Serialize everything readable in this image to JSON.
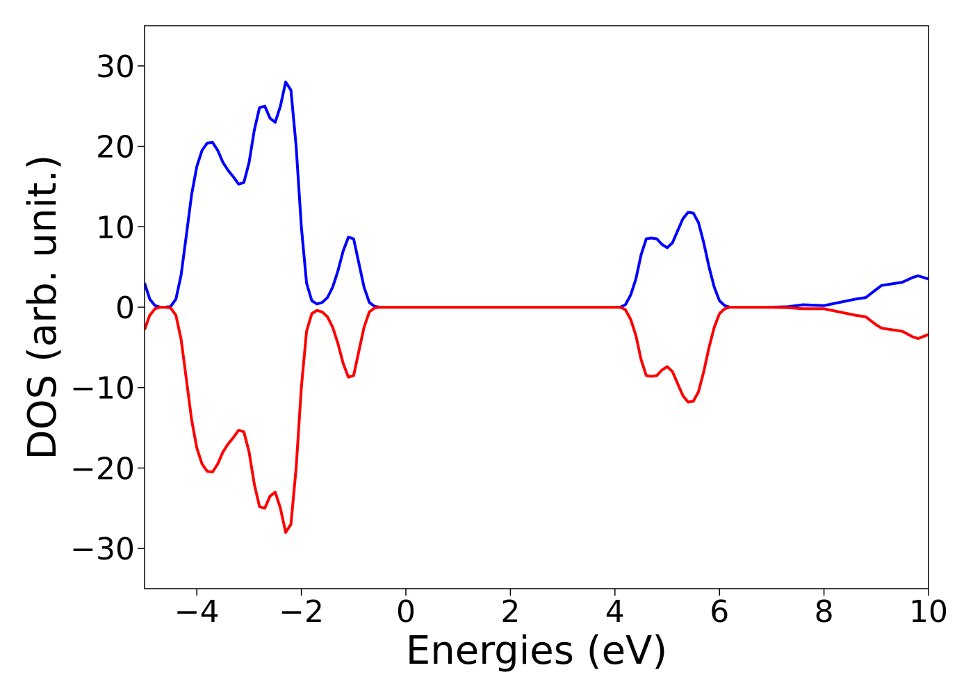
{
  "chart_data": {
    "type": "line",
    "xlabel": "Energies (eV)",
    "ylabel": "DOS (arb. unit.)",
    "x": [
      -5.0,
      -4.9,
      -4.8,
      -4.7,
      -4.6,
      -4.5,
      -4.4,
      -4.3,
      -4.2,
      -4.1,
      -4.0,
      -3.9,
      -3.8,
      -3.7,
      -3.6,
      -3.5,
      -3.4,
      -3.3,
      -3.2,
      -3.1,
      -3.0,
      -2.9,
      -2.8,
      -2.7,
      -2.6,
      -2.5,
      -2.4,
      -2.3,
      -2.2,
      -2.1,
      -2.0,
      -1.9,
      -1.8,
      -1.7,
      -1.6,
      -1.5,
      -1.4,
      -1.3,
      -1.2,
      -1.1,
      -1.0,
      -0.9,
      -0.8,
      -0.7,
      -0.6,
      -0.5,
      0,
      2,
      4,
      4.1,
      4.2,
      4.3,
      4.4,
      4.5,
      4.6,
      4.7,
      4.8,
      4.9,
      5.0,
      5.1,
      5.2,
      5.3,
      5.4,
      5.5,
      5.6,
      5.7,
      5.8,
      5.9,
      6.0,
      6.1,
      6.2,
      7.0,
      7.3,
      7.6,
      8.0,
      8.3,
      8.6,
      8.8,
      9.0,
      9.1,
      9.5,
      9.7,
      9.8,
      10.0
    ],
    "series": [
      {
        "color": "#0000ff",
        "values": [
          3.0,
          1.0,
          0.2,
          0,
          0,
          0.1,
          1.0,
          4,
          9,
          14,
          17.5,
          19.5,
          20.4,
          20.5,
          19.5,
          18,
          17,
          16.2,
          15.3,
          15.5,
          18,
          22,
          24.8,
          25,
          23.5,
          23,
          25,
          28,
          27,
          20,
          10,
          3,
          0.8,
          0.4,
          0.6,
          1.2,
          2.5,
          4.5,
          7,
          8.7,
          8.5,
          5.5,
          2.5,
          0.6,
          0.1,
          0,
          0,
          0,
          0,
          0,
          0.3,
          1.5,
          3.5,
          6.5,
          8.5,
          8.6,
          8.5,
          7.8,
          7.4,
          8,
          9.5,
          11,
          11.8,
          11.7,
          10.5,
          8,
          5,
          2.5,
          0.8,
          0.2,
          0,
          0,
          0.05,
          0.3,
          0.2,
          0.6,
          1.0,
          1.2,
          2.2,
          2.7,
          3.1,
          3.7,
          3.9,
          3.5
        ]
      },
      {
        "color": "#ff0000",
        "values": [
          -2.8,
          -1.0,
          -0.2,
          0,
          0,
          -0.1,
          -1.0,
          -4,
          -9,
          -14,
          -17.5,
          -19.5,
          -20.4,
          -20.5,
          -19.5,
          -18,
          -17,
          -16.2,
          -15.3,
          -15.5,
          -18,
          -22,
          -24.8,
          -25,
          -23.5,
          -23,
          -25,
          -28,
          -27,
          -20,
          -10,
          -3,
          -0.8,
          -0.4,
          -0.6,
          -1.2,
          -2.5,
          -4.5,
          -7,
          -8.7,
          -8.5,
          -5.5,
          -2.5,
          -0.6,
          -0.1,
          0,
          0,
          0,
          0,
          0,
          -0.3,
          -1.5,
          -3.5,
          -6.5,
          -8.5,
          -8.6,
          -8.5,
          -7.8,
          -7.4,
          -8,
          -9.5,
          -11,
          -11.8,
          -11.7,
          -10.5,
          -8,
          -5,
          -2.5,
          -0.8,
          -0.2,
          0,
          0,
          -0.05,
          -0.2,
          -0.2,
          -0.6,
          -1.0,
          -1.2,
          -2.2,
          -2.6,
          -3.0,
          -3.7,
          -3.9,
          -3.4
        ]
      }
    ],
    "xlim": [
      -5,
      10
    ],
    "xticks": [
      {
        "value": -4,
        "label": "−4"
      },
      {
        "value": -2,
        "label": "−2"
      },
      0,
      2,
      4,
      6,
      8,
      10
    ],
    "ylim": [
      -35,
      35
    ],
    "yticks": [
      {
        "value": -30,
        "label": "−30"
      },
      {
        "value": -20,
        "label": "−20"
      },
      {
        "value": -10,
        "label": "−10"
      },
      0,
      10,
      20,
      30
    ]
  }
}
